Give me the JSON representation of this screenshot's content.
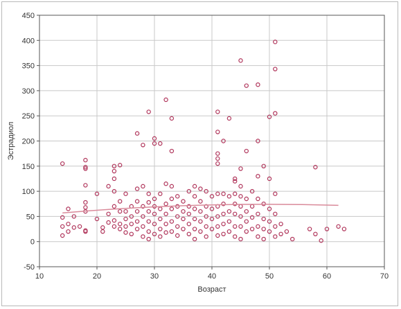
{
  "chart_data": {
    "type": "scatter",
    "title": "",
    "xlabel": "Возраст",
    "ylabel": "Эстрадиол",
    "xlim": [
      10,
      70
    ],
    "ylim": [
      -50,
      450
    ],
    "x_ticks": [
      "10",
      "20",
      "30",
      "40",
      "50",
      "60",
      "70"
    ],
    "y_ticks": [
      "-50",
      "0",
      "50",
      "100",
      "150",
      "200",
      "250",
      "300",
      "350",
      "400",
      "450"
    ],
    "grid": true,
    "legend": "none",
    "marker_color": "#b0345a",
    "line_color": "#d98a9a",
    "trend_line": {
      "x": [
        14,
        62
      ],
      "y": [
        57,
        72
      ]
    },
    "points": [
      [
        14,
        155
      ],
      [
        14,
        48
      ],
      [
        14,
        30
      ],
      [
        14,
        12
      ],
      [
        15,
        65
      ],
      [
        15,
        35
      ],
      [
        15,
        20
      ],
      [
        16,
        50
      ],
      [
        16,
        28
      ],
      [
        17,
        30
      ],
      [
        18,
        162
      ],
      [
        18,
        148
      ],
      [
        18,
        145
      ],
      [
        18,
        112
      ],
      [
        18,
        78
      ],
      [
        18,
        68
      ],
      [
        18,
        60
      ],
      [
        18,
        22
      ],
      [
        18,
        20
      ],
      [
        20,
        95
      ],
      [
        20,
        45
      ],
      [
        21,
        28
      ],
      [
        21,
        20
      ],
      [
        22,
        110
      ],
      [
        22,
        55
      ],
      [
        22,
        38
      ],
      [
        23,
        150
      ],
      [
        23,
        140
      ],
      [
        23,
        125
      ],
      [
        23,
        100
      ],
      [
        23,
        70
      ],
      [
        23,
        42
      ],
      [
        23,
        30
      ],
      [
        24,
        152
      ],
      [
        24,
        80
      ],
      [
        24,
        60
      ],
      [
        24,
        35
      ],
      [
        24,
        25
      ],
      [
        25,
        95
      ],
      [
        25,
        60
      ],
      [
        25,
        45
      ],
      [
        25,
        30
      ],
      [
        25,
        18
      ],
      [
        26,
        70
      ],
      [
        26,
        50
      ],
      [
        26,
        35
      ],
      [
        26,
        15
      ],
      [
        27,
        215
      ],
      [
        27,
        105
      ],
      [
        27,
        80
      ],
      [
        27,
        60
      ],
      [
        27,
        40
      ],
      [
        27,
        25
      ],
      [
        28,
        192
      ],
      [
        28,
        110
      ],
      [
        28,
        70
      ],
      [
        28,
        50
      ],
      [
        28,
        30
      ],
      [
        28,
        10
      ],
      [
        29,
        258
      ],
      [
        29,
        95
      ],
      [
        29,
        78
      ],
      [
        29,
        60
      ],
      [
        29,
        40
      ],
      [
        29,
        20
      ],
      [
        29,
        5
      ],
      [
        30,
        205
      ],
      [
        30,
        195
      ],
      [
        30,
        85
      ],
      [
        30,
        70
      ],
      [
        30,
        55
      ],
      [
        30,
        35
      ],
      [
        30,
        15
      ],
      [
        31,
        195
      ],
      [
        31,
        95
      ],
      [
        31,
        65
      ],
      [
        31,
        45
      ],
      [
        31,
        25
      ],
      [
        31,
        10
      ],
      [
        32,
        282
      ],
      [
        32,
        115
      ],
      [
        32,
        75
      ],
      [
        32,
        55
      ],
      [
        32,
        35
      ],
      [
        32,
        18
      ],
      [
        33,
        245
      ],
      [
        33,
        180
      ],
      [
        33,
        110
      ],
      [
        33,
        85
      ],
      [
        33,
        65
      ],
      [
        33,
        40
      ],
      [
        33,
        20
      ],
      [
        34,
        90
      ],
      [
        34,
        70
      ],
      [
        34,
        50
      ],
      [
        34,
        30
      ],
      [
        34,
        12
      ],
      [
        35,
        80
      ],
      [
        35,
        60
      ],
      [
        35,
        45
      ],
      [
        35,
        25
      ],
      [
        36,
        100
      ],
      [
        36,
        70
      ],
      [
        36,
        55
      ],
      [
        36,
        35
      ],
      [
        36,
        15
      ],
      [
        37,
        110
      ],
      [
        37,
        90
      ],
      [
        37,
        65
      ],
      [
        37,
        45
      ],
      [
        37,
        25
      ],
      [
        37,
        5
      ],
      [
        38,
        105
      ],
      [
        38,
        80
      ],
      [
        38,
        60
      ],
      [
        38,
        40
      ],
      [
        38,
        20
      ],
      [
        39,
        100
      ],
      [
        39,
        70
      ],
      [
        39,
        50
      ],
      [
        39,
        30
      ],
      [
        39,
        10
      ],
      [
        40,
        90
      ],
      [
        40,
        65
      ],
      [
        40,
        45
      ],
      [
        40,
        25
      ],
      [
        41,
        258
      ],
      [
        41,
        218
      ],
      [
        41,
        175
      ],
      [
        41,
        165
      ],
      [
        41,
        155
      ],
      [
        41,
        95
      ],
      [
        41,
        70
      ],
      [
        41,
        50
      ],
      [
        41,
        30
      ],
      [
        41,
        12
      ],
      [
        42,
        200
      ],
      [
        42,
        95
      ],
      [
        42,
        75
      ],
      [
        42,
        55
      ],
      [
        42,
        35
      ],
      [
        42,
        15
      ],
      [
        43,
        245
      ],
      [
        43,
        90
      ],
      [
        43,
        60
      ],
      [
        43,
        40
      ],
      [
        43,
        20
      ],
      [
        44,
        125
      ],
      [
        44,
        120
      ],
      [
        44,
        95
      ],
      [
        44,
        75
      ],
      [
        44,
        55
      ],
      [
        44,
        30
      ],
      [
        44,
        10
      ],
      [
        45,
        360
      ],
      [
        45,
        145
      ],
      [
        45,
        110
      ],
      [
        45,
        90
      ],
      [
        45,
        70
      ],
      [
        45,
        50
      ],
      [
        45,
        30
      ],
      [
        45,
        5
      ],
      [
        46,
        310
      ],
      [
        46,
        180
      ],
      [
        46,
        85
      ],
      [
        46,
        60
      ],
      [
        46,
        40
      ],
      [
        46,
        20
      ],
      [
        47,
        100
      ],
      [
        47,
        70
      ],
      [
        47,
        48
      ],
      [
        47,
        25
      ],
      [
        48,
        312
      ],
      [
        48,
        200
      ],
      [
        48,
        130
      ],
      [
        48,
        85
      ],
      [
        48,
        55
      ],
      [
        48,
        30
      ],
      [
        48,
        10
      ],
      [
        49,
        150
      ],
      [
        49,
        75
      ],
      [
        49,
        45
      ],
      [
        49,
        25
      ],
      [
        49,
        5
      ],
      [
        50,
        248
      ],
      [
        50,
        125
      ],
      [
        50,
        65
      ],
      [
        50,
        40
      ],
      [
        50,
        20
      ],
      [
        51,
        397
      ],
      [
        51,
        343
      ],
      [
        51,
        255
      ],
      [
        51,
        95
      ],
      [
        51,
        55
      ],
      [
        51,
        30
      ],
      [
        51,
        10
      ],
      [
        52,
        35
      ],
      [
        52,
        15
      ],
      [
        53,
        20
      ],
      [
        54,
        5
      ],
      [
        57,
        25
      ],
      [
        58,
        148
      ],
      [
        58,
        15
      ],
      [
        59,
        2
      ],
      [
        60,
        25
      ],
      [
        62,
        30
      ],
      [
        63,
        25
      ]
    ]
  }
}
